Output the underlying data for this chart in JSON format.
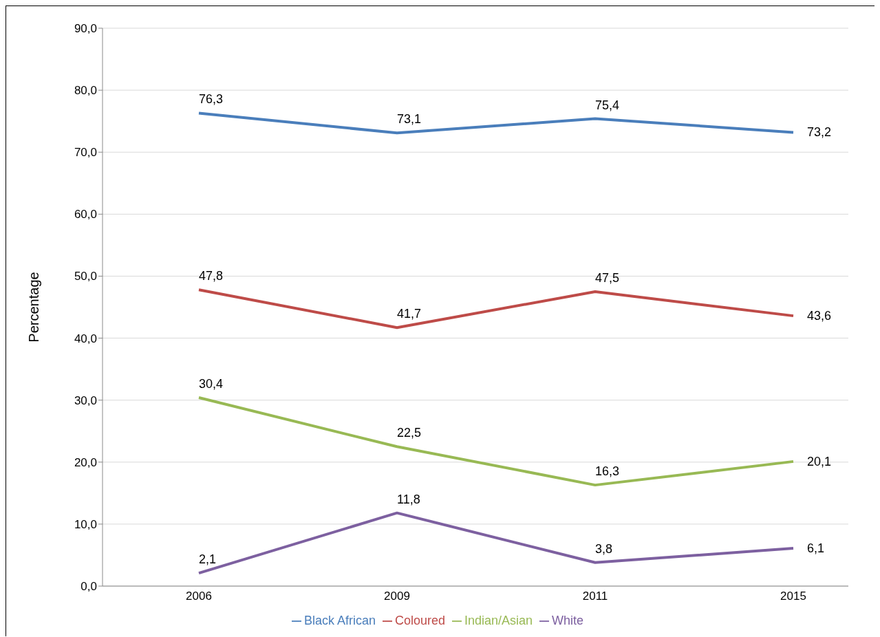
{
  "chart_data": {
    "type": "line",
    "ylabel": "Percentage",
    "categories": [
      "2006",
      "2009",
      "2011",
      "2015"
    ],
    "series": [
      {
        "name": "Black African",
        "color": "#4a7ebb",
        "values": [
          76.3,
          73.1,
          75.4,
          73.2
        ],
        "value_labels": [
          "76,3",
          "73,1",
          "75,4",
          "73,2"
        ]
      },
      {
        "name": "Coloured",
        "color": "#be4b48",
        "values": [
          47.8,
          41.7,
          47.5,
          43.6
        ],
        "value_labels": [
          "47,8",
          "41,7",
          "47,5",
          "43,6"
        ]
      },
      {
        "name": "Indian/Asian",
        "color": "#98b954",
        "values": [
          30.4,
          22.5,
          16.3,
          20.1
        ],
        "value_labels": [
          "30,4",
          "22,5",
          "16,3",
          "20,1"
        ]
      },
      {
        "name": "White",
        "color": "#7d60a0",
        "values": [
          2.1,
          11.8,
          3.8,
          6.1
        ],
        "value_labels": [
          "2,1",
          "11,8",
          "3,8",
          "6,1"
        ]
      }
    ],
    "ylim": [
      0,
      90
    ],
    "yticks": [
      {
        "value": 0,
        "label": "0,0"
      },
      {
        "value": 10,
        "label": "10,0"
      },
      {
        "value": 20,
        "label": "20,0"
      },
      {
        "value": 30,
        "label": "30,0"
      },
      {
        "value": 40,
        "label": "40,0"
      },
      {
        "value": 50,
        "label": "50,0"
      },
      {
        "value": 60,
        "label": "60,0"
      },
      {
        "value": 70,
        "label": "70,0"
      },
      {
        "value": 80,
        "label": "80,0"
      },
      {
        "value": 90,
        "label": "90,0"
      }
    ],
    "grid": "y",
    "legend": "bottom",
    "marker": "none",
    "line_style": "solid"
  }
}
